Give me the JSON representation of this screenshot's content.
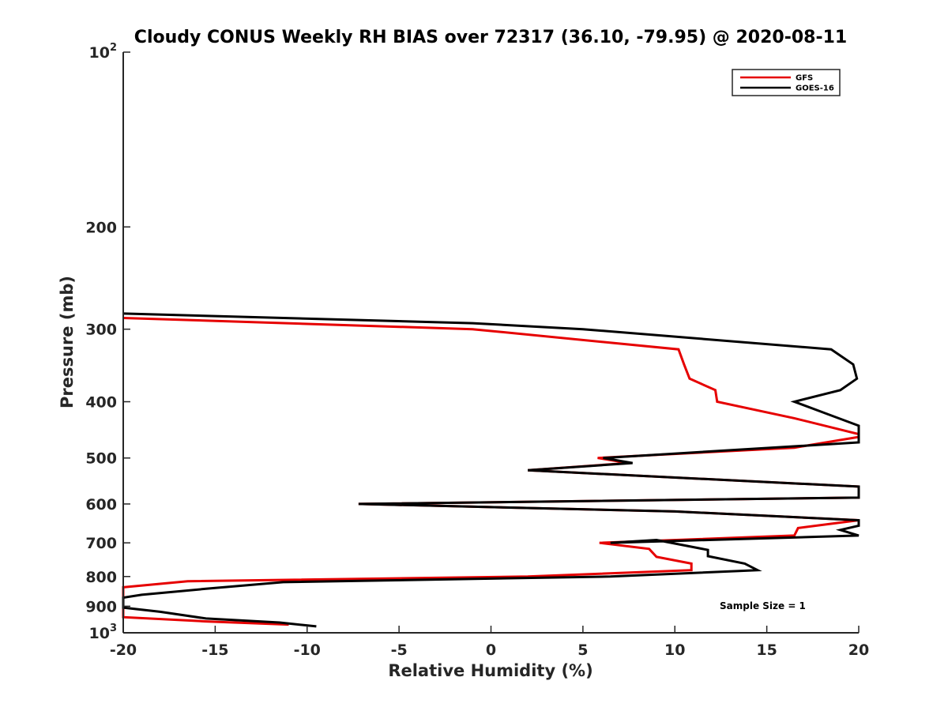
{
  "chart_data": {
    "type": "line",
    "title": "Cloudy CONUS Weekly RH BIAS over 72317 (36.10, -79.95) @ 2020-08-11",
    "xlabel": "Relative Humidity (%)",
    "ylabel": "Pressure (mb)",
    "xlim": [
      -20,
      20
    ],
    "ylim": [
      100,
      1000
    ],
    "yscale": "log",
    "y_reversed": true,
    "grid": false,
    "legend_position": "top-right",
    "x_ticks": [
      "-20",
      "-15",
      "-10",
      "-5",
      "0",
      "5",
      "10",
      "15",
      "20"
    ],
    "x_tick_values": [
      -20,
      -15,
      -10,
      -5,
      0,
      5,
      10,
      15,
      20
    ],
    "y_ticks": [
      {
        "value": 100,
        "base": "10",
        "exp": "2"
      },
      {
        "value": 200,
        "label": "200"
      },
      {
        "value": 300,
        "label": "300"
      },
      {
        "value": 400,
        "label": "400"
      },
      {
        "value": 500,
        "label": "500"
      },
      {
        "value": 600,
        "label": "600"
      },
      {
        "value": 700,
        "label": "700"
      },
      {
        "value": 800,
        "label": "800"
      },
      {
        "value": 900,
        "label": "900"
      },
      {
        "value": 1000,
        "base": "10",
        "exp": "3"
      }
    ],
    "annotation": "Sample Size = 1",
    "series": [
      {
        "name": "GFS",
        "color": "#e60000",
        "points": [
          [
            -20,
            287
          ],
          [
            -1,
            300
          ],
          [
            10.2,
            325
          ],
          [
            10.5,
            345
          ],
          [
            10.8,
            365
          ],
          [
            12.2,
            382
          ],
          [
            12.3,
            400
          ],
          [
            16.5,
            427
          ],
          [
            20,
            455
          ],
          [
            20,
            460
          ],
          [
            16.5,
            480
          ],
          [
            5.8,
            500
          ],
          [
            7.5,
            510
          ],
          [
            2.0,
            525
          ],
          [
            20,
            560
          ],
          [
            20,
            585
          ],
          [
            -7.2,
            600
          ],
          [
            10,
            618
          ],
          [
            20,
            640
          ],
          [
            16.7,
            660
          ],
          [
            16.5,
            680
          ],
          [
            5.9,
            700
          ],
          [
            8.6,
            717
          ],
          [
            9.0,
            740
          ],
          [
            10.9,
            760
          ],
          [
            10.9,
            780
          ],
          [
            2.0,
            800
          ],
          [
            -16.5,
            815
          ],
          [
            -20,
            835
          ],
          [
            -20,
            940
          ],
          [
            -15.5,
            956
          ],
          [
            -11.0,
            968
          ]
        ]
      },
      {
        "name": "GOES-16",
        "color": "#000000",
        "points": [
          [
            -20,
            282
          ],
          [
            -1,
            293
          ],
          [
            5,
            300
          ],
          [
            18.5,
            325
          ],
          [
            19.7,
            345
          ],
          [
            19.9,
            365
          ],
          [
            19.0,
            382
          ],
          [
            16.5,
            400
          ],
          [
            18.3,
            420
          ],
          [
            20,
            440
          ],
          [
            20,
            470
          ],
          [
            6.1,
            500
          ],
          [
            7.7,
            510
          ],
          [
            2.0,
            525
          ],
          [
            20,
            560
          ],
          [
            20,
            585
          ],
          [
            -7.2,
            600
          ],
          [
            10,
            618
          ],
          [
            20,
            640
          ],
          [
            20,
            654
          ],
          [
            19.0,
            665
          ],
          [
            20,
            680
          ],
          [
            6.5,
            700
          ],
          [
            9.0,
            692
          ],
          [
            11.8,
            720
          ],
          [
            11.8,
            738
          ],
          [
            13.8,
            760
          ],
          [
            14.5,
            780
          ],
          [
            6.5,
            800
          ],
          [
            -11.3,
            818
          ],
          [
            -15.5,
            840
          ],
          [
            -19.0,
            860
          ],
          [
            -20,
            870
          ],
          [
            -20,
            905
          ],
          [
            -18.0,
            920
          ],
          [
            -15.5,
            945
          ],
          [
            -11.5,
            960
          ],
          [
            -9.5,
            975
          ]
        ]
      }
    ]
  }
}
